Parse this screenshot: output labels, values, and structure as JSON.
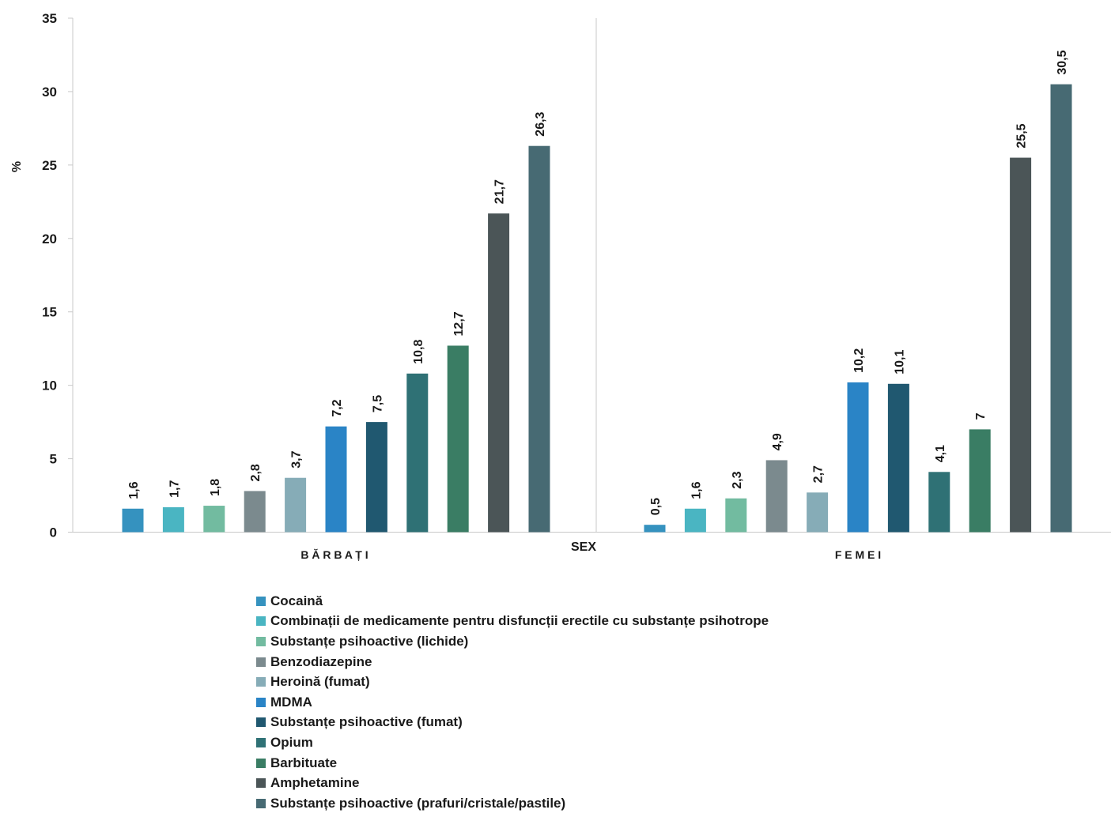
{
  "chart_data": {
    "type": "bar",
    "ylabel": "%",
    "xlabel": "SEX",
    "ylim": [
      0,
      35
    ],
    "yticks": [
      0,
      5,
      10,
      15,
      20,
      25,
      30,
      35
    ],
    "ytick_labels": [
      "0",
      "5",
      "10",
      "15",
      "20",
      "25",
      "30",
      "35"
    ],
    "grid": false,
    "legend_position": "bottom",
    "groups": [
      {
        "name": "B Ă R B A Ț I",
        "series": [
          "Cocaină",
          "Combinații de medicamente pentru disfuncții erectile cu substanțe psihotrope",
          "Substanțe psihoactive (lichide)",
          "Benzodiazepine",
          "Heroină (fumat)",
          "MDMA",
          "Substanțe psihoactive (fumat)",
          "Opium",
          "Barbituate",
          "Amphetamine",
          "Substanțe psihoactive (prafuri/cristale/pastile)"
        ],
        "values": [
          1.6,
          1.7,
          1.8,
          2.8,
          3.7,
          7.2,
          7.5,
          10.8,
          12.7,
          21.7,
          26.3
        ],
        "labels": [
          "1,6",
          "1,7",
          "1,8",
          "2,8",
          "3,7",
          "7,2",
          "7,5",
          "10,8",
          "12,7",
          "21,7",
          "26,3"
        ]
      },
      {
        "name": "F E M E I",
        "series": [
          "Cocaină",
          "Combinații de medicamente pentru disfuncții erectile cu substanțe psihotrope",
          "Substanțe psihoactive (lichide)",
          "Benzodiazepine",
          "Heroină (fumat)",
          "MDMA",
          "Substanțe psihoactive (fumat)",
          "Opium",
          "Barbituate",
          "Amphetamine",
          "Substanțe psihoactive (prafuri/cristale/pastile)"
        ],
        "values": [
          0.5,
          1.6,
          2.3,
          4.9,
          2.7,
          10.2,
          10.1,
          4.1,
          7,
          25.5,
          30.5
        ],
        "labels": [
          "0,5",
          "1,6",
          "2,3",
          "4,9",
          "2,7",
          "10,2",
          "10,1",
          "4,1",
          "7",
          "25,5",
          "30,5"
        ]
      }
    ],
    "legend": [
      {
        "name": "Cocaină",
        "color": "#3592bf"
      },
      {
        "name": "Combinații de medicamente pentru disfuncții erectile cu substanțe psihotrope",
        "color": "#4ab5c2"
      },
      {
        "name": "Substanțe psihoactive (lichide)",
        "color": "#72bba0"
      },
      {
        "name": "Benzodiazepine",
        "color": "#7b8a8e"
      },
      {
        "name": "Heroină (fumat)",
        "color": "#86acb7"
      },
      {
        "name": "MDMA",
        "color": "#2a84c6"
      },
      {
        "name": "Substanțe psihoactive (fumat)",
        "color": "#205870"
      },
      {
        "name": "Opium",
        "color": "#2f7175"
      },
      {
        "name": "Barbituate",
        "color": "#3a7d64"
      },
      {
        "name": "Amphetamine",
        "color": "#4b5557"
      },
      {
        "name": "Substanțe psihoactive (prafuri/cristale/pastile)",
        "color": "#476a73"
      }
    ]
  }
}
